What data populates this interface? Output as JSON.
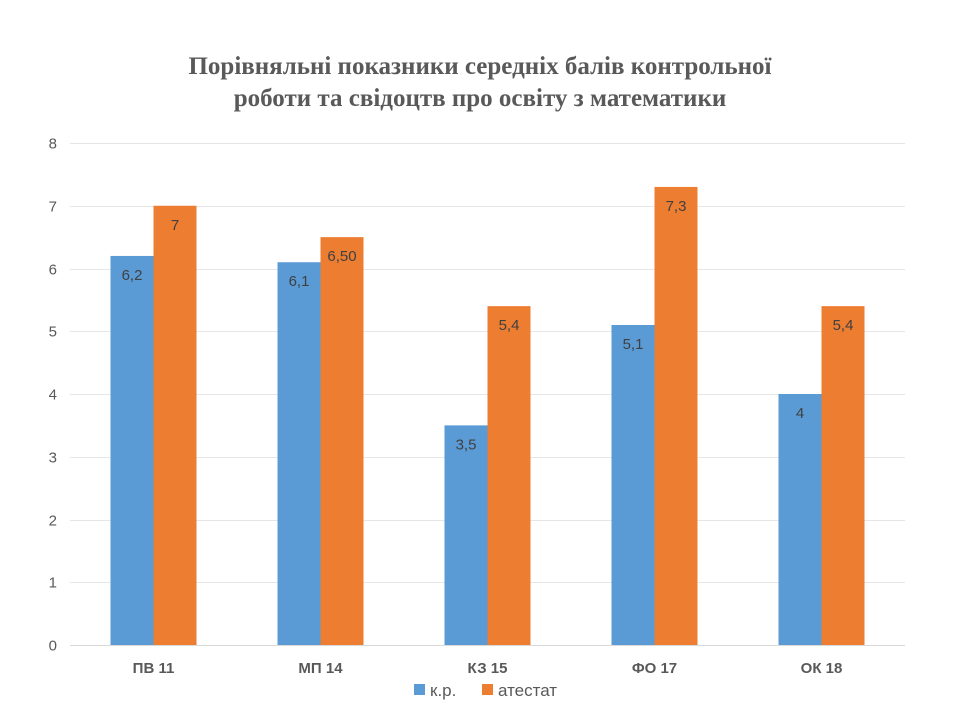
{
  "chart_data": {
    "type": "bar",
    "title_lines": [
      "Порівняльні показники середніх балів контрольної",
      "роботи та  свідоцтв про освіту з математики"
    ],
    "categories": [
      "ПВ 11",
      "МП 14",
      "КЗ 15",
      "ФО 17",
      "ОК 18"
    ],
    "series": [
      {
        "name": "к.р.",
        "color": "#5B9BD5",
        "values": [
          6.2,
          6.1,
          3.5,
          5.1,
          4
        ],
        "labels": [
          "6,2",
          "6,1",
          "3,5",
          "5,1",
          "4"
        ]
      },
      {
        "name": "атестат",
        "color": "#ED7D31",
        "values": [
          7,
          6.5,
          5.4,
          7.3,
          5.4
        ],
        "labels": [
          "7",
          "6,50",
          "5,4",
          "7,3",
          "5,4"
        ]
      }
    ],
    "ylim": [
      0,
      8
    ],
    "yticks": [
      "0",
      "1",
      "2",
      "3",
      "4",
      "5",
      "6",
      "7",
      "8"
    ],
    "grid": true,
    "legend": "bottom"
  }
}
